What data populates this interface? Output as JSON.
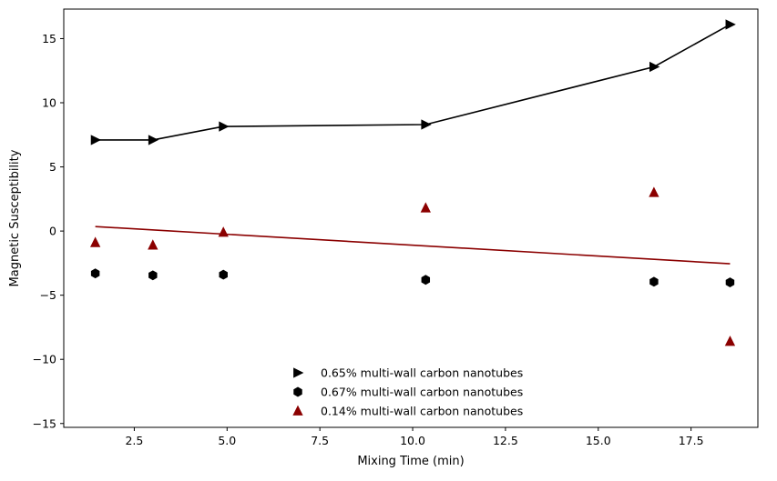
{
  "chart_data": {
    "type": "scatter",
    "title": "",
    "xlabel": "Mixing Time (min)",
    "ylabel": "Magnetic Susceptibility",
    "xlim": [
      0.6,
      19.3
    ],
    "ylim": [
      -15.3,
      17.3
    ],
    "xticks": [
      2.5,
      5.0,
      7.5,
      10.0,
      12.5,
      15.0,
      17.5
    ],
    "xtick_labels": [
      "2.5",
      "5.0",
      "7.5",
      "10.0",
      "12.5",
      "15.0",
      "17.5"
    ],
    "yticks": [
      -15,
      -10,
      -5,
      0,
      5,
      10,
      15
    ],
    "ytick_labels": [
      "−15",
      "−10",
      "−5",
      "0",
      "5",
      "10",
      "15"
    ],
    "grid": false,
    "legend_position": "bottom-center",
    "series": [
      {
        "name": "0.65% multi-wall carbon nanotubes",
        "marker": "triangle-right",
        "color": "#000000",
        "connected": true,
        "x": [
          1.45,
          3.0,
          4.9,
          10.35,
          16.5,
          18.55
        ],
        "y": [
          7.1,
          7.1,
          8.15,
          8.3,
          12.8,
          16.1
        ]
      },
      {
        "name": "0.67% multi-wall carbon nanotubes",
        "marker": "hexagon",
        "color": "#000000",
        "connected": false,
        "x": [
          1.45,
          3.0,
          4.9,
          10.35,
          16.5,
          18.55
        ],
        "y": [
          -3.3,
          -3.45,
          -3.4,
          -3.8,
          -3.95,
          -4.0
        ]
      },
      {
        "name": "0.14% multi-wall carbon nanotubes",
        "marker": "triangle-up",
        "color": "#8b0000",
        "connected": false,
        "x": [
          1.45,
          3.0,
          4.9,
          10.35,
          16.5,
          18.55
        ],
        "y": [
          -0.9,
          -1.1,
          -0.1,
          1.8,
          3.0,
          -8.6
        ]
      }
    ],
    "trend_line": {
      "color": "#8b0000",
      "x": [
        1.45,
        18.55
      ],
      "y": [
        0.35,
        -2.55
      ]
    }
  }
}
